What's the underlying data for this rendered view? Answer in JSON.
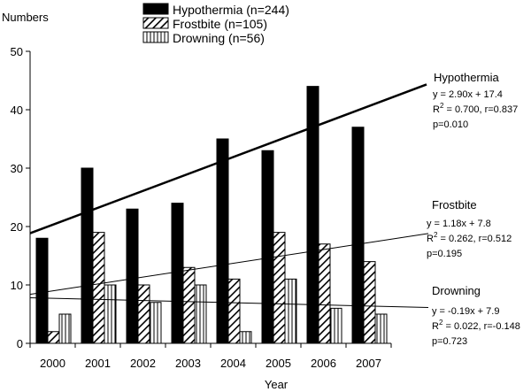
{
  "chart_data": {
    "type": "bar",
    "xlabel": "Year",
    "ylabel": "Numbers",
    "ylim": [
      0,
      50
    ],
    "yticks": [
      0,
      10,
      20,
      30,
      40,
      50
    ],
    "grid": false,
    "legend_position": "top",
    "categories": [
      "2000",
      "2001",
      "2002",
      "2003",
      "2004",
      "2005",
      "2006",
      "2007"
    ],
    "series": [
      {
        "name": "Hypothermia (n=244)",
        "fill": "solid",
        "color": "#000000",
        "values": [
          18,
          30,
          23,
          24,
          35,
          33,
          44,
          37
        ]
      },
      {
        "name": "Frostbite (n=105)",
        "fill": "diagonal-hatch",
        "color": "#000000",
        "values": [
          2,
          19,
          10,
          13,
          11,
          19,
          17,
          14
        ]
      },
      {
        "name": "Drowning (n=56)",
        "fill": "vertical-stripes",
        "color": "#000000",
        "values": [
          5,
          10,
          7,
          10,
          2,
          11,
          6,
          5
        ]
      }
    ],
    "trendlines": [
      {
        "name": "Hypothermia",
        "slope": 2.9,
        "intercept": 17.4,
        "equation": "y = 2.90x + 17.4",
        "r2_prefix": "R",
        "r2_sup": "2",
        "r2_rest": " = 0.700, r=0.837",
        "p": "p=0.010",
        "width": "heavy"
      },
      {
        "name": "Frostbite",
        "slope": 1.18,
        "intercept": 7.8,
        "equation": "y = 1.18x + 7.8",
        "r2_prefix": "R",
        "r2_sup": "2",
        "r2_rest": " = 0.262, r=0.512",
        "p": "p=0.195",
        "width": "thin"
      },
      {
        "name": "Drowning",
        "slope": -0.19,
        "intercept": 7.9,
        "equation": "y = -0.19x + 7.9",
        "r2_prefix": "R",
        "r2_sup": "2",
        "r2_rest": " = 0.022, r=-0.148",
        "p": "p=0.723",
        "width": "thin"
      }
    ]
  }
}
